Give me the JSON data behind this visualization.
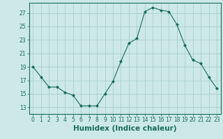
{
  "x": [
    0,
    1,
    2,
    3,
    4,
    5,
    6,
    7,
    8,
    9,
    10,
    11,
    12,
    13,
    14,
    15,
    16,
    17,
    18,
    19,
    20,
    21,
    22,
    23
  ],
  "y": [
    19,
    17.5,
    16,
    16,
    15.2,
    14.8,
    13.2,
    13.2,
    13.2,
    15,
    16.8,
    19.8,
    22.5,
    23.2,
    27.2,
    27.8,
    27.4,
    27.2,
    25.3,
    22.2,
    20,
    19.5,
    17.5,
    15.8
  ],
  "line_color": "#1a6b5a",
  "marker": "D",
  "marker_size": 2.0,
  "bg_color": "#cce8e8",
  "grid_color": "#aacece",
  "xlabel": "Humidex (Indice chaleur)",
  "xlim": [
    -0.5,
    23.5
  ],
  "ylim": [
    12.0,
    28.5
  ],
  "yticks": [
    13,
    15,
    17,
    19,
    21,
    23,
    25,
    27
  ],
  "xticks": [
    0,
    1,
    2,
    3,
    4,
    5,
    6,
    7,
    8,
    9,
    10,
    11,
    12,
    13,
    14,
    15,
    16,
    17,
    18,
    19,
    20,
    21,
    22,
    23
  ],
  "tick_label_fontsize": 5.5,
  "xlabel_fontsize": 7.5,
  "axis_color": "#1a6b5a"
}
